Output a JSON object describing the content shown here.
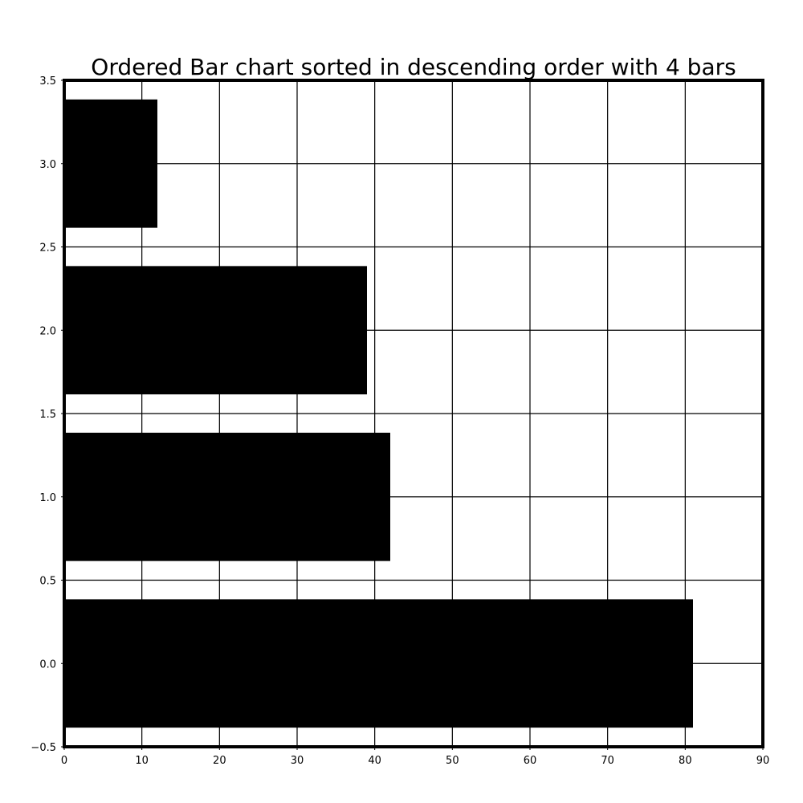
{
  "chart_data": {
    "type": "bar",
    "orientation": "horizontal",
    "title": "Ordered Bar chart sorted in descending order with 4 bars",
    "xlabel": "",
    "ylabel": "",
    "y_positions": [
      0,
      1,
      2,
      3
    ],
    "values": [
      81,
      42,
      39,
      12
    ],
    "bar_width": 0.77,
    "xlim": [
      0,
      90
    ],
    "ylim": [
      -0.5,
      3.5
    ],
    "x_ticks": [
      0,
      10,
      20,
      30,
      40,
      50,
      60,
      70,
      80,
      90
    ],
    "x_tick_labels": [
      "0",
      "10",
      "20",
      "30",
      "40",
      "50",
      "60",
      "70",
      "80",
      "90"
    ],
    "y_ticks": [
      -0.5,
      0.0,
      0.5,
      1.0,
      1.5,
      2.0,
      2.5,
      3.0,
      3.5
    ],
    "y_tick_labels": [
      "−0.5",
      "0.0",
      "0.5",
      "1.0",
      "1.5",
      "2.0",
      "2.5",
      "3.0",
      "3.5"
    ],
    "grid": true,
    "legend": "none",
    "bar_color": "#000000",
    "grid_color": "#000000",
    "background_color": "#ffffff"
  }
}
